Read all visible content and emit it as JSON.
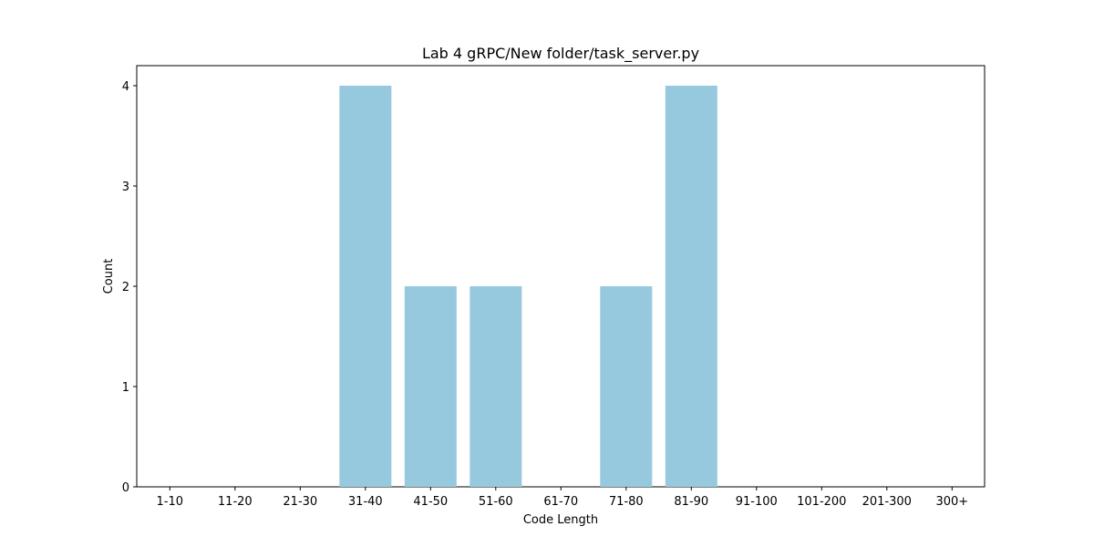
{
  "chart_data": {
    "type": "bar",
    "title": "Lab 4 gRPC/New folder/task_server.py",
    "xlabel": "Code Length",
    "ylabel": "Count",
    "categories": [
      "1-10",
      "11-20",
      "21-30",
      "31-40",
      "41-50",
      "51-60",
      "61-70",
      "71-80",
      "81-90",
      "91-100",
      "101-200",
      "201-300",
      "300+"
    ],
    "values": [
      0,
      0,
      0,
      4,
      2,
      2,
      0,
      2,
      4,
      0,
      0,
      0,
      0
    ],
    "ylim": [
      0,
      4.2
    ],
    "yticks": [
      "0",
      "1",
      "2",
      "3",
      "4"
    ],
    "bar_color": "#96c9de",
    "grid": false,
    "legend": "none"
  }
}
